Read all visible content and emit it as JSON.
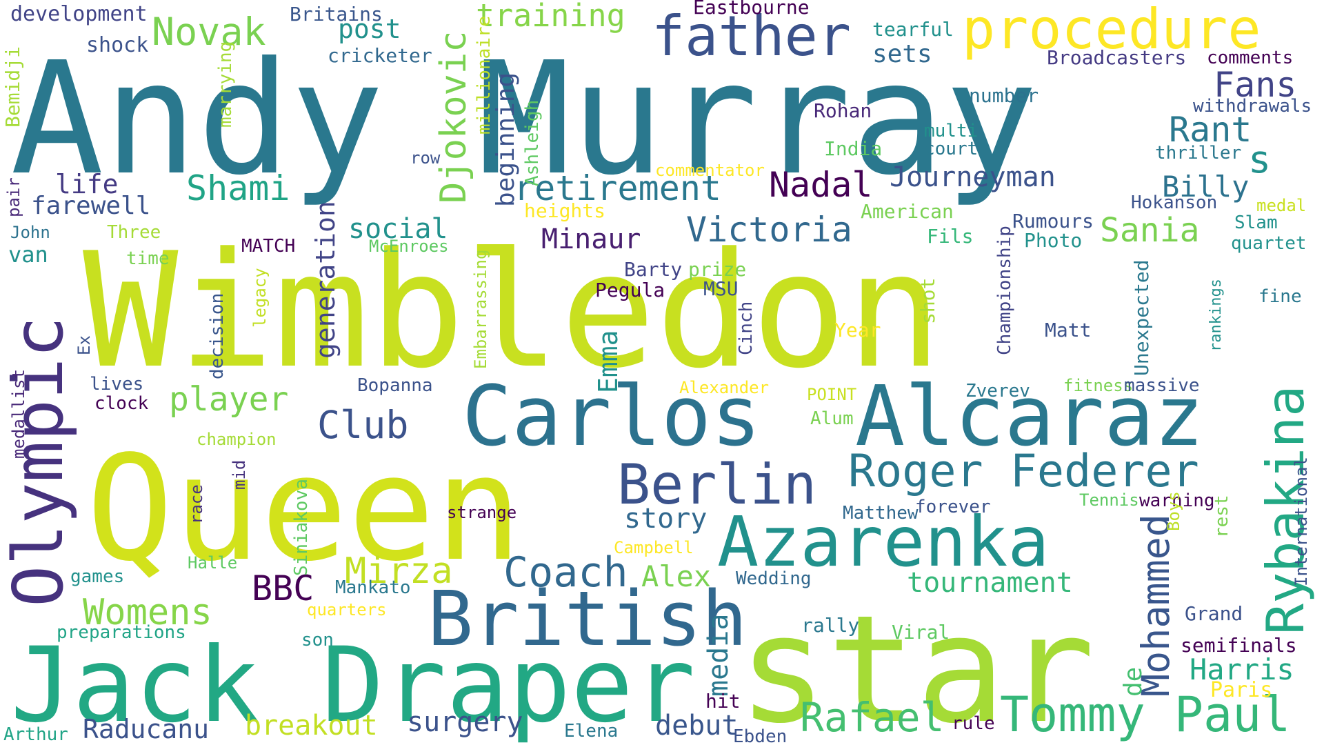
{
  "palette": {
    "background": "#ffffff",
    "colors": [
      "#2a788e",
      "#c8e020",
      "#21918c",
      "#3b528b",
      "#443a83",
      "#5ec962",
      "#fde725",
      "#482878",
      "#22a884",
      "#440154"
    ]
  },
  "words": [
    {
      "text": "Andy Murray",
      "color": "#2a788e"
    },
    {
      "text": "Wimbledon",
      "color": "#c8e020"
    },
    {
      "text": "Queen",
      "color": "#d2e21b"
    },
    {
      "text": "star",
      "color": "#a5db36"
    },
    {
      "text": "Jack Draper",
      "color": "#22a884"
    },
    {
      "text": "Carlos",
      "color": "#2c728e"
    },
    {
      "text": "Alcaraz",
      "color": "#2a788e"
    },
    {
      "text": "Azarenka",
      "color": "#21918c"
    },
    {
      "text": "British",
      "color": "#31688e"
    },
    {
      "text": "Olympic",
      "color": "#46327e"
    },
    {
      "text": "Rybakina",
      "color": "#22a884"
    },
    {
      "text": "procedure",
      "color": "#fde725"
    },
    {
      "text": "father",
      "color": "#3b528b"
    },
    {
      "text": "Berlin",
      "color": "#3b528b"
    },
    {
      "text": "Roger Federer",
      "color": "#2a788e"
    },
    {
      "text": "Tommy Paul",
      "color": "#35b779"
    },
    {
      "text": "Rafael",
      "color": "#44bf70"
    },
    {
      "text": "Mohammed",
      "color": "#39568c"
    },
    {
      "text": "Coach",
      "color": "#31688e"
    },
    {
      "text": "retirement",
      "color": "#2a788e"
    },
    {
      "text": "Nadal",
      "color": "#440154"
    },
    {
      "text": "Victoria",
      "color": "#31688e"
    },
    {
      "text": "Djokovic",
      "color": "#7ad151"
    },
    {
      "text": "Fans",
      "color": "#414487"
    },
    {
      "text": "Rant",
      "color": "#2a788e"
    },
    {
      "text": "s",
      "color": "#21918c"
    },
    {
      "text": "Novak",
      "color": "#7ad151"
    },
    {
      "text": "training",
      "color": "#86d549"
    },
    {
      "text": "Shami",
      "color": "#20a486"
    },
    {
      "text": "Journeyman",
      "color": "#3b528b"
    },
    {
      "text": "Sania",
      "color": "#7ad151"
    },
    {
      "text": "Billy",
      "color": "#2c728e"
    },
    {
      "text": "player",
      "color": "#7ad151"
    },
    {
      "text": "Club",
      "color": "#3b528b"
    },
    {
      "text": "Mirza",
      "color": "#c2df23"
    },
    {
      "text": "Womens",
      "color": "#86d549"
    },
    {
      "text": "BBC",
      "color": "#440154"
    },
    {
      "text": "Alex",
      "color": "#7ad151"
    },
    {
      "text": "tournament",
      "color": "#35b779"
    },
    {
      "text": "story",
      "color": "#31688e"
    },
    {
      "text": "Harris",
      "color": "#22a884"
    },
    {
      "text": "Raducanu",
      "color": "#3b528b"
    },
    {
      "text": "breakout",
      "color": "#c2df23"
    },
    {
      "text": "surgery",
      "color": "#3b528b"
    },
    {
      "text": "debut",
      "color": "#39568c"
    },
    {
      "text": "Minaur",
      "color": "#481f70"
    },
    {
      "text": "social",
      "color": "#21918c"
    },
    {
      "text": "generation",
      "color": "#414487"
    },
    {
      "text": "life",
      "color": "#443a83"
    },
    {
      "text": "farewell",
      "color": "#3b528b"
    },
    {
      "text": "Emma",
      "color": "#21918c"
    },
    {
      "text": "post",
      "color": "#21918c"
    },
    {
      "text": "sets",
      "color": "#31688e"
    },
    {
      "text": "beginning",
      "color": "#3b528b"
    },
    {
      "text": "media",
      "color": "#2a788e"
    },
    {
      "text": "de",
      "color": "#44bf70"
    },
    {
      "text": "Paris",
      "color": "#fde725"
    },
    {
      "text": "van",
      "color": "#21918c"
    },
    {
      "text": "development",
      "color": "#414487"
    },
    {
      "text": "shock",
      "color": "#3b528b"
    },
    {
      "text": "Bemidji",
      "color": "#a5db36"
    },
    {
      "text": "Britains",
      "color": "#39568c"
    },
    {
      "text": "cricketer",
      "color": "#31688e"
    },
    {
      "text": "millionaire",
      "color": "#bddf26"
    },
    {
      "text": "Ashleigh",
      "color": "#5ec962"
    },
    {
      "text": "commentator",
      "color": "#fde725"
    },
    {
      "text": "Eastbourne",
      "color": "#440154"
    },
    {
      "text": "tearful",
      "color": "#21918c"
    },
    {
      "text": "Broadcasters",
      "color": "#443a83"
    },
    {
      "text": "comments",
      "color": "#440154"
    },
    {
      "text": "withdrawals",
      "color": "#3b528b"
    },
    {
      "text": "Rohan",
      "color": "#482878"
    },
    {
      "text": "number",
      "color": "#2c728e"
    },
    {
      "text": "multi",
      "color": "#21918c"
    },
    {
      "text": "court",
      "color": "#2a788e"
    },
    {
      "text": "India",
      "color": "#5ec962"
    },
    {
      "text": "thriller",
      "color": "#2a788e"
    },
    {
      "text": "marrying",
      "color": "#a5db36"
    },
    {
      "text": "row",
      "color": "#3b528b"
    },
    {
      "text": "pair",
      "color": "#482878"
    },
    {
      "text": "John",
      "color": "#2c728e"
    },
    {
      "text": "Three",
      "color": "#a5db36"
    },
    {
      "text": "time",
      "color": "#7ad151"
    },
    {
      "text": "MATCH",
      "color": "#440154"
    },
    {
      "text": "McEnroes",
      "color": "#5ec962"
    },
    {
      "text": "heights",
      "color": "#fde725"
    },
    {
      "text": "American",
      "color": "#7ad151"
    },
    {
      "text": "Championship",
      "color": "#414487"
    },
    {
      "text": "Rumours",
      "color": "#3b528b"
    },
    {
      "text": "Photo",
      "color": "#21918c"
    },
    {
      "text": "Fils",
      "color": "#35b779"
    },
    {
      "text": "Hokanson",
      "color": "#3b528b"
    },
    {
      "text": "medal",
      "color": "#c8e020"
    },
    {
      "text": "Slam",
      "color": "#21918c"
    },
    {
      "text": "quartet",
      "color": "#21918c"
    },
    {
      "text": "Barty",
      "color": "#414487"
    },
    {
      "text": "Pegula",
      "color": "#440154"
    },
    {
      "text": "prize",
      "color": "#7ad151"
    },
    {
      "text": "MSU",
      "color": "#3b528b"
    },
    {
      "text": "Embarrassing",
      "color": "#a5db36"
    },
    {
      "text": "legacy",
      "color": "#c2df23"
    },
    {
      "text": "decision",
      "color": "#39568c"
    },
    {
      "text": "shot",
      "color": "#a5db36"
    },
    {
      "text": "Unexpected",
      "color": "#2a788e"
    },
    {
      "text": "rankings",
      "color": "#21918c"
    },
    {
      "text": "fine",
      "color": "#2a788e"
    },
    {
      "text": "Year",
      "color": "#fde725"
    },
    {
      "text": "Matt",
      "color": "#3b528b"
    },
    {
      "text": "Cinch",
      "color": "#414487"
    },
    {
      "text": "medallist",
      "color": "#482878"
    },
    {
      "text": "Ex",
      "color": "#3b528b"
    },
    {
      "text": "lives",
      "color": "#3b528b"
    },
    {
      "text": "clock",
      "color": "#440154"
    },
    {
      "text": "Bopanna",
      "color": "#3b528b"
    },
    {
      "text": "Alexander",
      "color": "#fde725"
    },
    {
      "text": "POINT",
      "color": "#c8e020"
    },
    {
      "text": "Alum",
      "color": "#7ad151"
    },
    {
      "text": "Zverev",
      "color": "#2a788e"
    },
    {
      "text": "fitness",
      "color": "#7ad151"
    },
    {
      "text": "massive",
      "color": "#3b528b"
    },
    {
      "text": "International",
      "color": "#3b528b"
    },
    {
      "text": "champion",
      "color": "#a5db36"
    },
    {
      "text": "mid",
      "color": "#46327e"
    },
    {
      "text": "race",
      "color": "#46327e"
    },
    {
      "text": "Siniakova",
      "color": "#5ec962"
    },
    {
      "text": "strange",
      "color": "#440154"
    },
    {
      "text": "Matthew",
      "color": "#31688e"
    },
    {
      "text": "forever",
      "color": "#3b528b"
    },
    {
      "text": "Tennis",
      "color": "#5ec962"
    },
    {
      "text": "warning",
      "color": "#440154"
    },
    {
      "text": "rest",
      "color": "#7ad151"
    },
    {
      "text": "Boys",
      "color": "#bddf26"
    },
    {
      "text": "Campbell",
      "color": "#fde725"
    },
    {
      "text": "Halle",
      "color": "#5ec962"
    },
    {
      "text": "games",
      "color": "#21918c"
    },
    {
      "text": "Mankato",
      "color": "#2a788e"
    },
    {
      "text": "Wedding",
      "color": "#31688e"
    },
    {
      "text": "quarters",
      "color": "#fde725"
    },
    {
      "text": "preparations",
      "color": "#20a486"
    },
    {
      "text": "son",
      "color": "#21918c"
    },
    {
      "text": "rally",
      "color": "#2a788e"
    },
    {
      "text": "Viral",
      "color": "#5ec962"
    },
    {
      "text": "Grand",
      "color": "#3b528b"
    },
    {
      "text": "semifinals",
      "color": "#440154"
    },
    {
      "text": "hit",
      "color": "#440154"
    },
    {
      "text": "Arthur",
      "color": "#20a486"
    },
    {
      "text": "Elena",
      "color": "#2a788e"
    },
    {
      "text": "Ebden",
      "color": "#3b528b"
    },
    {
      "text": "rule",
      "color": "#440154"
    }
  ]
}
